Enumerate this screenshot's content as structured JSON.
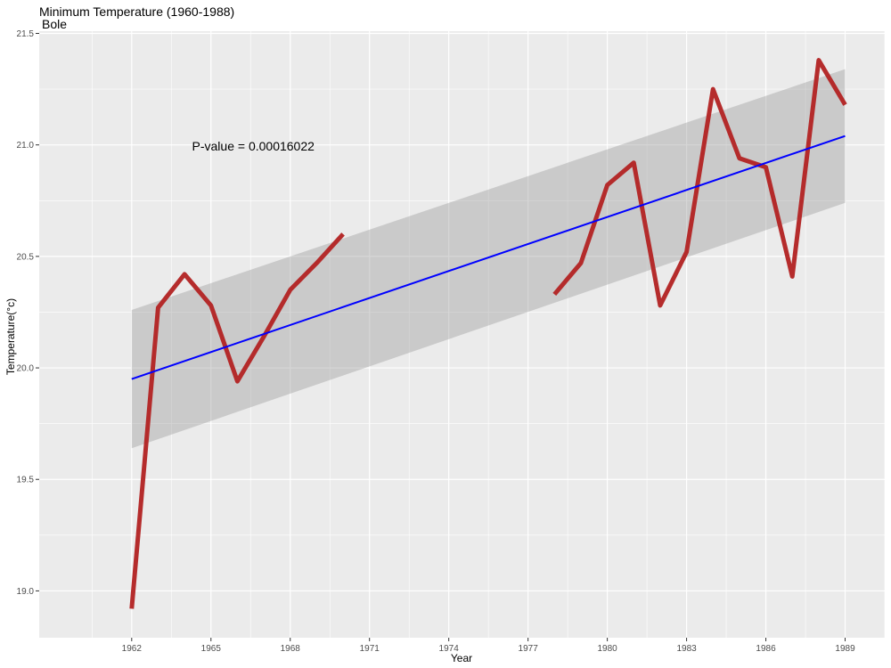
{
  "chart_data": {
    "type": "line",
    "title": "Minimum Temperature (1960-1988)",
    "subtitle": "Bole",
    "xlabel": "Year",
    "ylabel": "Temperature(°c)",
    "xlim": [
      1958.5,
      1990.5
    ],
    "ylim": [
      18.79,
      21.51
    ],
    "x_ticks": [
      1962,
      1965,
      1968,
      1971,
      1974,
      1977,
      1980,
      1983,
      1986,
      1989
    ],
    "y_ticks": [
      19.0,
      19.5,
      20.0,
      20.5,
      21.0,
      21.5
    ],
    "y_tick_labels": [
      "19.0",
      "19.5",
      "20.0",
      "20.5",
      "21.0",
      "21.5"
    ],
    "grid": true,
    "annotation": {
      "text": "P-value = 0.00016022",
      "x": 1966.6,
      "y": 20.99
    },
    "series": [
      {
        "color": "#b22222",
        "segments": [
          [
            [
              1962,
              18.92
            ],
            [
              1963,
              20.27
            ],
            [
              1964,
              20.42
            ],
            [
              1965,
              20.28
            ],
            [
              1966,
              19.94
            ],
            [
              1967,
              20.14
            ],
            [
              1968,
              20.35
            ],
            [
              1969,
              20.47
            ],
            [
              1970,
              20.6
            ]
          ],
          [
            [
              1978,
              20.33
            ],
            [
              1979,
              20.47
            ],
            [
              1980,
              20.82
            ],
            [
              1981,
              20.92
            ],
            [
              1982,
              20.28
            ],
            [
              1983,
              20.52
            ],
            [
              1984,
              21.25
            ],
            [
              1985,
              20.94
            ],
            [
              1986,
              20.9
            ],
            [
              1987,
              20.41
            ],
            [
              1988,
              21.38
            ],
            [
              1989,
              21.18
            ]
          ]
        ]
      }
    ],
    "trend": {
      "color": "#0000ff",
      "band_color": "#999999",
      "start": {
        "x": 1962,
        "y": 19.95,
        "lower": 19.64,
        "upper": 20.26
      },
      "end": {
        "x": 1989,
        "y": 21.04,
        "lower": 20.74,
        "upper": 21.34
      }
    },
    "colors": {
      "panel": "#ebebeb",
      "grid": "#ffffff",
      "text": "#4d4d4d"
    }
  }
}
